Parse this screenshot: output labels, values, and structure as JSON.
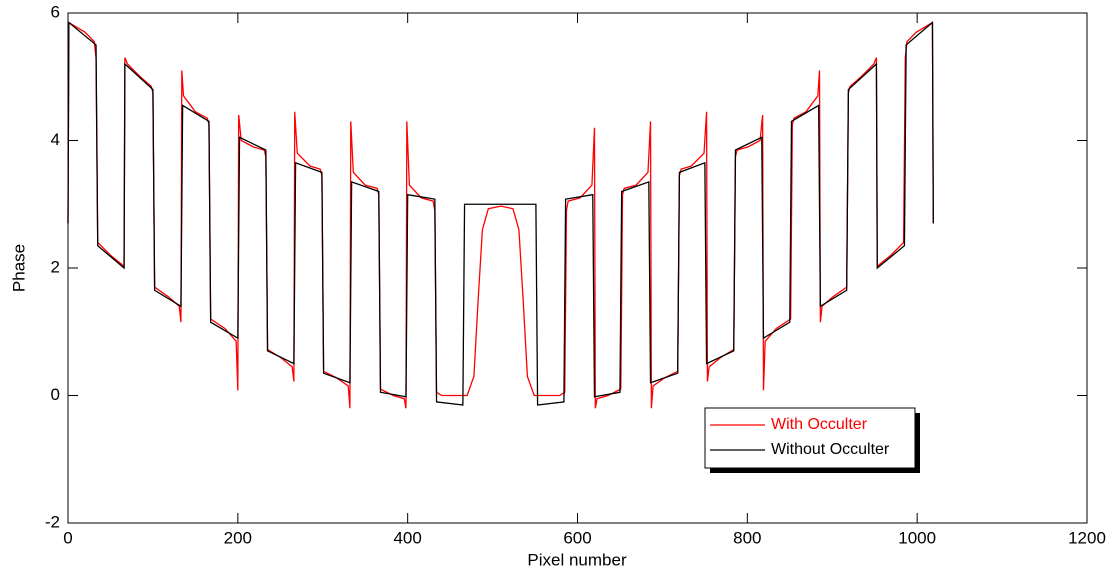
{
  "chart_data": {
    "type": "line",
    "xlabel": "Pixel number",
    "ylabel": "Phase",
    "xlim": [
      0,
      1200
    ],
    "ylim": [
      -2,
      6
    ],
    "xticks": [
      0,
      200,
      400,
      600,
      800,
      1000,
      1200
    ],
    "yticks": [
      -2,
      0,
      2,
      4,
      6
    ],
    "grid": false,
    "legend": "lower right",
    "series": [
      {
        "name": "With Occulter",
        "color": "#ff0000",
        "x": [
          0,
          1,
          20,
          31,
          33,
          35,
          50,
          64,
          66,
          67,
          70,
          85,
          98,
          100,
          102,
          118,
          131,
          133,
          134,
          136,
          150,
          164,
          166,
          168,
          185,
          198,
          200,
          201,
          204,
          218,
          231,
          233,
          235,
          250,
          264,
          266,
          267,
          270,
          285,
          297,
          299,
          301,
          316,
          330,
          332,
          333,
          336,
          350,
          364,
          366,
          368,
          383,
          396,
          398,
          399,
          402,
          416,
          430,
          432,
          434,
          440,
          470,
          478,
          483,
          488,
          495,
          510,
          524,
          531,
          536,
          541,
          549,
          579,
          585,
          587,
          589,
          603,
          617,
          620,
          621,
          623,
          636,
          651,
          653,
          655,
          669,
          683,
          686,
          687,
          689,
          703,
          718,
          720,
          722,
          734,
          749,
          752,
          753,
          755,
          769,
          784,
          786,
          788,
          801,
          815,
          818,
          819,
          821,
          834,
          851,
          853,
          855,
          869,
          883,
          885,
          886,
          888,
          901,
          917,
          919,
          921,
          934,
          949,
          952,
          953,
          955,
          969,
          984,
          986,
          988,
          999,
          1018,
          1019
        ],
        "values": [
          2.7,
          5.85,
          5.7,
          5.55,
          5.3,
          2.4,
          2.2,
          2.05,
          2.0,
          5.3,
          5.2,
          5.0,
          4.85,
          4.75,
          1.7,
          1.55,
          1.4,
          1.15,
          5.1,
          4.7,
          4.45,
          4.35,
          4.25,
          1.2,
          1.05,
          0.85,
          0.08,
          4.4,
          4.0,
          3.9,
          3.85,
          3.75,
          0.72,
          0.6,
          0.45,
          0.22,
          4.45,
          3.8,
          3.6,
          3.55,
          3.45,
          0.38,
          0.28,
          0.15,
          -0.2,
          4.3,
          3.5,
          3.3,
          3.25,
          3.15,
          0.1,
          0.0,
          -0.05,
          -0.2,
          4.3,
          3.3,
          3.1,
          3.05,
          2.9,
          0.05,
          0.0,
          0.0,
          0.3,
          1.5,
          2.6,
          2.93,
          2.97,
          2.93,
          2.6,
          1.5,
          0.3,
          0.0,
          0.0,
          0.05,
          2.9,
          3.05,
          3.1,
          3.3,
          4.2,
          -0.2,
          -0.05,
          0.0,
          0.1,
          3.15,
          3.25,
          3.3,
          3.5,
          4.3,
          -0.2,
          0.15,
          0.28,
          0.38,
          3.45,
          3.55,
          3.6,
          3.8,
          4.45,
          0.22,
          0.45,
          0.6,
          0.72,
          3.75,
          3.85,
          3.9,
          4.0,
          4.4,
          0.08,
          0.85,
          1.05,
          1.2,
          4.25,
          4.35,
          4.45,
          4.7,
          5.1,
          1.15,
          1.4,
          1.55,
          1.7,
          4.75,
          4.85,
          5.0,
          5.2,
          5.3,
          2.0,
          2.05,
          2.2,
          2.4,
          5.3,
          5.55,
          5.7,
          5.85,
          2.7
        ]
      },
      {
        "name": "Without Occulter",
        "color": "#000000",
        "x": [
          0,
          1,
          33,
          35,
          66,
          67,
          100,
          102,
          133,
          135,
          166,
          168,
          200,
          202,
          233,
          235,
          266,
          268,
          299,
          301,
          332,
          334,
          366,
          368,
          398,
          400,
          432,
          434,
          465,
          467,
          551,
          553,
          584,
          586,
          618,
          620,
          650,
          652,
          684,
          686,
          718,
          720,
          750,
          752,
          784,
          786,
          817,
          819,
          850,
          852,
          884,
          886,
          917,
          919,
          952,
          953,
          985,
          987,
          1018,
          1019
        ],
        "values": [
          2.7,
          5.85,
          5.5,
          2.35,
          2.0,
          5.2,
          4.8,
          1.65,
          1.4,
          4.55,
          4.3,
          1.15,
          0.9,
          4.05,
          3.85,
          0.7,
          0.5,
          3.65,
          3.5,
          0.35,
          0.2,
          3.35,
          3.2,
          0.05,
          -0.02,
          3.15,
          3.08,
          -0.1,
          -0.15,
          3.0,
          3.0,
          -0.15,
          -0.1,
          3.08,
          3.15,
          -0.02,
          0.05,
          3.2,
          3.35,
          0.2,
          0.35,
          3.5,
          3.65,
          0.5,
          0.7,
          3.85,
          4.05,
          0.9,
          1.15,
          4.3,
          4.55,
          1.4,
          1.65,
          4.8,
          5.2,
          2.0,
          2.35,
          5.5,
          5.85,
          2.7
        ]
      }
    ]
  }
}
